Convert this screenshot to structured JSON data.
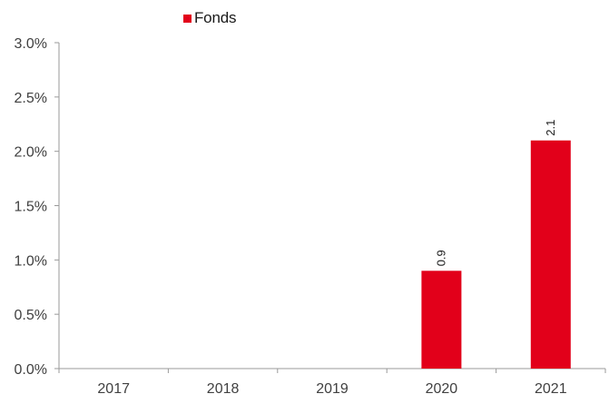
{
  "chart_data": {
    "type": "bar",
    "categories": [
      "2017",
      "2018",
      "2019",
      "2020",
      "2021"
    ],
    "series": [
      {
        "name": "Fonds",
        "values": [
          null,
          null,
          null,
          0.9,
          2.1
        ],
        "data_labels": [
          "",
          "",
          "",
          "0.9",
          "2.1"
        ]
      }
    ],
    "ylim": [
      0,
      3.0
    ],
    "yticks": [
      0,
      0.5,
      1.0,
      1.5,
      2.0,
      2.5,
      3.0
    ],
    "ytick_labels": [
      "0.0%",
      "0.5%",
      "1.0%",
      "1.5%",
      "2.0%",
      "2.5%",
      "3.0%"
    ],
    "grid": false,
    "legend_position": "top",
    "title": "",
    "xlabel": "",
    "ylabel": ""
  },
  "colors": {
    "series": "#e2001a",
    "axis": "#9a9a9a"
  }
}
